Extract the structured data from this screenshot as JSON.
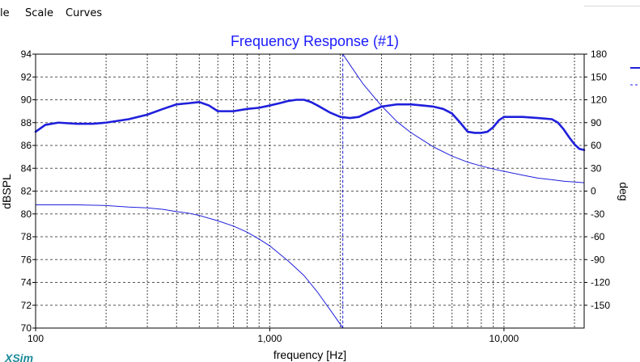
{
  "menu": {
    "items": [
      "le",
      "Scale",
      "Curves"
    ]
  },
  "chart_data": {
    "type": "line",
    "title": "Frequency Response (#1)",
    "xlabel": "frequency [Hz]",
    "ylabel": "dBSPL",
    "y2label": "deg",
    "xscale": "log",
    "xlim": [
      100,
      22000
    ],
    "ylim": [
      70,
      94
    ],
    "y2lim": [
      -180,
      180
    ],
    "grid": true,
    "xticks": [
      {
        "value": 100,
        "label": "100"
      },
      {
        "value": 1000,
        "label": "1,000"
      },
      {
        "value": 10000,
        "label": "10,000"
      }
    ],
    "yticks": [
      "94",
      "92",
      "90",
      "88",
      "86",
      "84",
      "82",
      "80",
      "78",
      "76",
      "74",
      "72",
      "70"
    ],
    "y2ticks": [
      "180",
      "150",
      "120",
      "90",
      "60",
      "30",
      "0",
      "-30",
      "-60",
      "-90",
      "-120",
      "-150"
    ],
    "series": [
      {
        "axis": "left",
        "color": "#1f1fdc",
        "width": 2.6,
        "style": "solid",
        "points": [
          [
            100,
            87.2
          ],
          [
            110,
            87.8
          ],
          [
            125,
            88.0
          ],
          [
            150,
            87.9
          ],
          [
            175,
            87.9
          ],
          [
            200,
            88.0
          ],
          [
            250,
            88.3
          ],
          [
            300,
            88.7
          ],
          [
            350,
            89.2
          ],
          [
            400,
            89.6
          ],
          [
            450,
            89.7
          ],
          [
            500,
            89.8
          ],
          [
            550,
            89.5
          ],
          [
            600,
            89.0
          ],
          [
            700,
            89.0
          ],
          [
            800,
            89.2
          ],
          [
            900,
            89.3
          ],
          [
            1000,
            89.5
          ],
          [
            1100,
            89.7
          ],
          [
            1200,
            89.9
          ],
          [
            1300,
            90.0
          ],
          [
            1400,
            90.0
          ],
          [
            1500,
            89.8
          ],
          [
            1600,
            89.5
          ],
          [
            1800,
            88.9
          ],
          [
            2000,
            88.5
          ],
          [
            2200,
            88.4
          ],
          [
            2400,
            88.5
          ],
          [
            2700,
            89.0
          ],
          [
            3000,
            89.4
          ],
          [
            3500,
            89.6
          ],
          [
            4000,
            89.6
          ],
          [
            4500,
            89.5
          ],
          [
            5000,
            89.4
          ],
          [
            5500,
            89.2
          ],
          [
            6000,
            88.8
          ],
          [
            6500,
            88.0
          ],
          [
            7000,
            87.2
          ],
          [
            7500,
            87.1
          ],
          [
            8000,
            87.1
          ],
          [
            8500,
            87.2
          ],
          [
            9000,
            87.6
          ],
          [
            9500,
            88.2
          ],
          [
            10000,
            88.5
          ],
          [
            11000,
            88.5
          ],
          [
            12000,
            88.5
          ],
          [
            14000,
            88.4
          ],
          [
            16000,
            88.3
          ],
          [
            17000,
            88.0
          ],
          [
            18000,
            87.4
          ],
          [
            19000,
            86.7
          ],
          [
            20000,
            86.1
          ],
          [
            21000,
            85.7
          ],
          [
            22000,
            85.6
          ]
        ]
      },
      {
        "axis": "right",
        "color": "#1f1fdc",
        "width": 1,
        "style": "solid",
        "points": [
          [
            100,
            -18
          ],
          [
            150,
            -18
          ],
          [
            200,
            -19
          ],
          [
            250,
            -21
          ],
          [
            300,
            -22
          ],
          [
            350,
            -24
          ],
          [
            400,
            -27
          ],
          [
            450,
            -29
          ],
          [
            500,
            -32
          ],
          [
            600,
            -39
          ],
          [
            700,
            -46
          ],
          [
            800,
            -54
          ],
          [
            900,
            -63
          ],
          [
            1000,
            -72
          ],
          [
            1200,
            -92
          ],
          [
            1400,
            -111
          ],
          [
            1600,
            -133
          ],
          [
            1800,
            -155
          ],
          [
            2000,
            -175
          ],
          [
            2050,
            -180
          ]
        ]
      },
      {
        "axis": "right",
        "color": "#1f1fdc",
        "width": 1,
        "style": "solid",
        "points": [
          [
            2050,
            180
          ],
          [
            2200,
            166
          ],
          [
            2500,
            141
          ],
          [
            3000,
            112
          ],
          [
            3500,
            91
          ],
          [
            4000,
            77
          ],
          [
            4500,
            67
          ],
          [
            5000,
            58
          ],
          [
            6000,
            46
          ],
          [
            7000,
            38
          ],
          [
            8000,
            33
          ],
          [
            9000,
            29
          ],
          [
            10000,
            26
          ],
          [
            12000,
            21
          ],
          [
            14000,
            17
          ],
          [
            16000,
            15
          ],
          [
            18000,
            13
          ],
          [
            20000,
            12
          ],
          [
            22000,
            11
          ]
        ]
      },
      {
        "axis": "right",
        "color": "#1f1fdc",
        "width": 1,
        "style": "dashed",
        "points": [
          [
            2050,
            -180
          ],
          [
            2050,
            180
          ]
        ]
      }
    ]
  },
  "watermark": "XSim"
}
